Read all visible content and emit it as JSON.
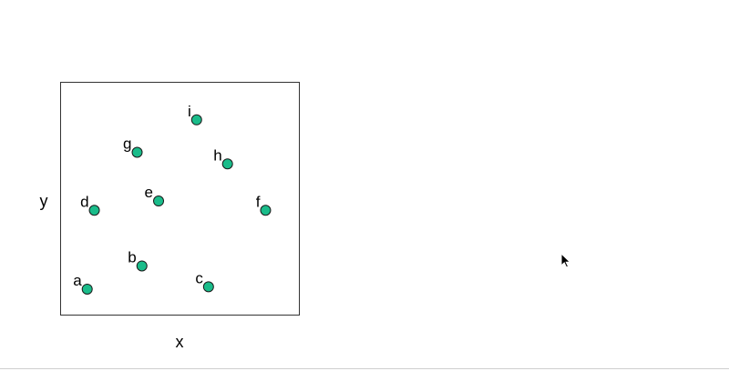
{
  "chart_data": {
    "type": "scatter",
    "title": "",
    "xlabel": "x",
    "ylabel": "y",
    "xlim": [
      0,
      10
    ],
    "ylim": [
      0,
      10
    ],
    "grid": false,
    "legend": "none",
    "point_color": "#1abc8a",
    "point_stroke": "#1b1b1b",
    "series": [
      {
        "points": [
          {
            "label": "a",
            "x": 1.1,
            "y": 1.1
          },
          {
            "label": "b",
            "x": 3.4,
            "y": 2.1
          },
          {
            "label": "c",
            "x": 6.2,
            "y": 1.2
          },
          {
            "label": "d",
            "x": 1.4,
            "y": 4.5
          },
          {
            "label": "e",
            "x": 4.1,
            "y": 4.9
          },
          {
            "label": "f",
            "x": 8.6,
            "y": 4.5
          },
          {
            "label": "g",
            "x": 3.2,
            "y": 7.0
          },
          {
            "label": "h",
            "x": 7.0,
            "y": 6.5
          },
          {
            "label": "i",
            "x": 5.7,
            "y": 8.4
          }
        ]
      }
    ]
  },
  "cursor": "pointer-arrow-icon"
}
